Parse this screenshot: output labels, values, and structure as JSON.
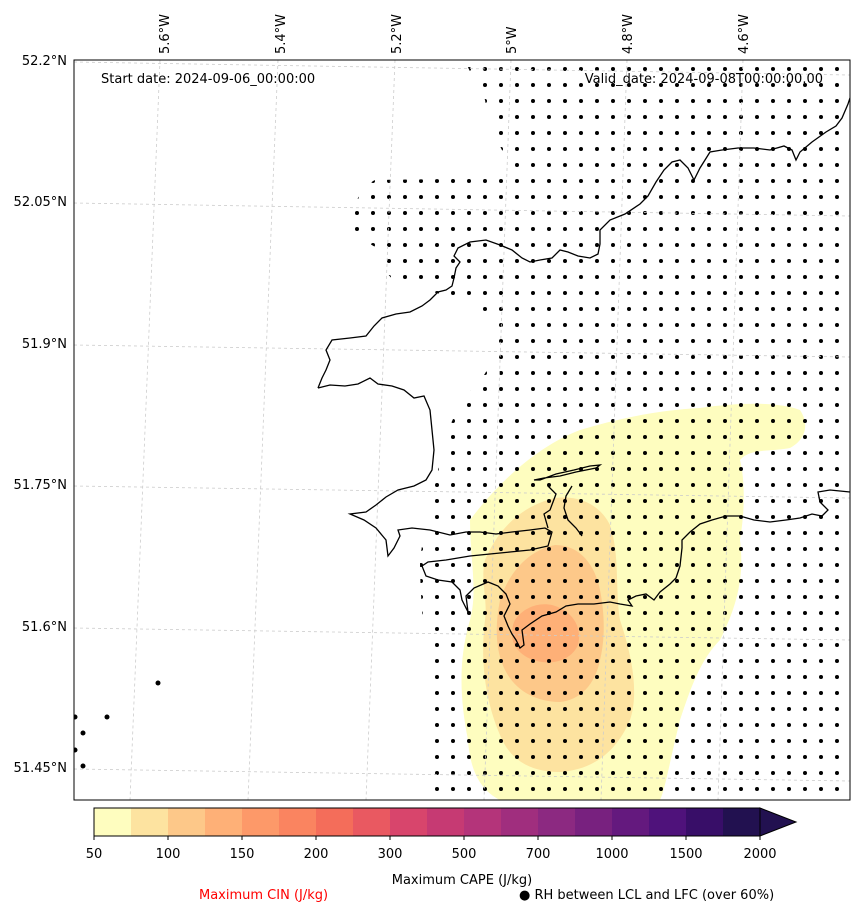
{
  "header": {
    "start_label": "Start date: 2024-09-06_00:00:00",
    "valid_label": "Valid_date: 2024-09-08T00:00:00.00"
  },
  "axes": {
    "longitude_labels": [
      "5.6°W",
      "5.4°W",
      "5.2°W",
      "5°W",
      "4.8°W",
      "4.6°W"
    ],
    "latitude_labels": [
      "52.2°N",
      "52.05°N",
      "51.9°N",
      "51.75°N",
      "51.6°N",
      "51.45°N"
    ]
  },
  "colorbar": {
    "title": "Maximum CAPE (J/kg)",
    "tick_labels": [
      "50",
      "100",
      "150",
      "200",
      "300",
      "500",
      "700",
      "1000",
      "1500",
      "2000"
    ],
    "colors": [
      "#fefdbf",
      "#fde3a0",
      "#fdc889",
      "#feb077",
      "#fd9969",
      "#fa8460",
      "#f46d5a",
      "#e95961",
      "#d8456c",
      "#c63a73",
      "#b4347a",
      "#a02e7e",
      "#8c2981",
      "#78217f",
      "#64197e",
      "#4f127b",
      "#380e68",
      "#221150"
    ],
    "extend": "max"
  },
  "legend": {
    "cin_label": "Maximum CIN (J/kg)",
    "cin_color": "#ff0000",
    "rh_label": "● RH between LCL and LFC (over 60%)"
  },
  "map": {
    "coastline_color": "#000000",
    "gridline_color": "#cccccc",
    "field_colors": [
      "#fefdbf",
      "#fde3a0",
      "#fdc889",
      "#feb077"
    ]
  }
}
